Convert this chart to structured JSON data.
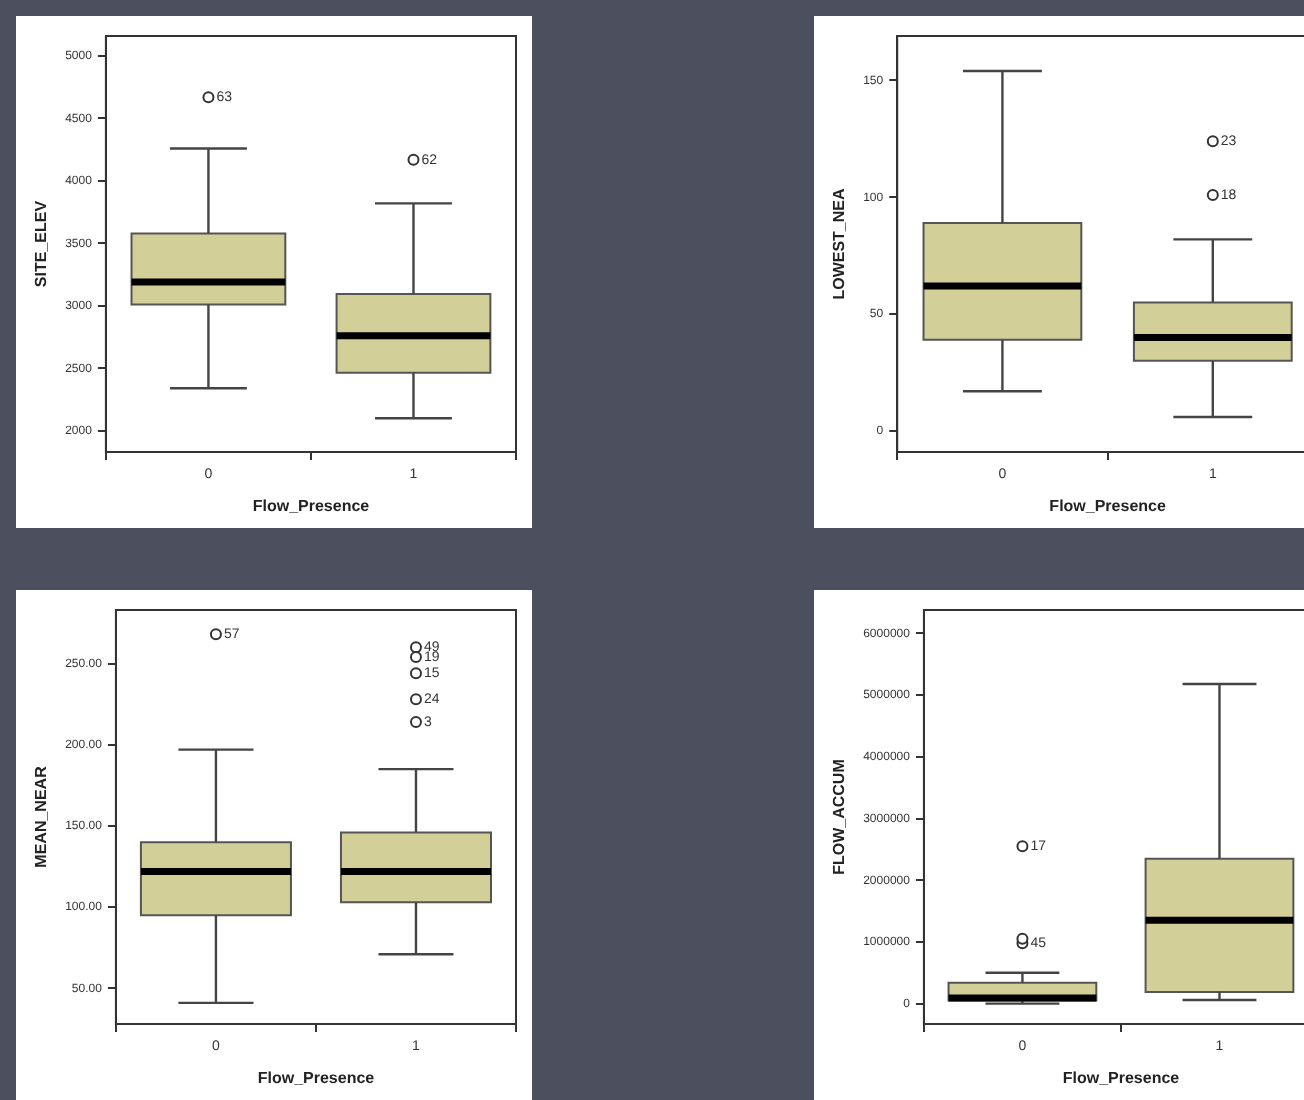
{
  "chart_data": [
    {
      "type": "box",
      "categories": [
        "0",
        "1"
      ],
      "xlabel": "Flow_Presence",
      "ylabel": "SITE_ELEV",
      "ylim": [
        1830,
        5160
      ],
      "yticks": [
        2000,
        2500,
        3000,
        3500,
        4000,
        4500,
        5000
      ],
      "grid": false,
      "legend": false,
      "series": [
        {
          "color": "#d3cf98",
          "boxes": [
            {
              "low": 2340,
              "q1": 3010,
              "median": 3190,
              "q3": 3580,
              "high": 4260,
              "outliers": [
                4670
              ]
            },
            {
              "low": 2100,
              "q1": 2465,
              "median": 2760,
              "q3": 3095,
              "high": 3820,
              "outliers": [
                4170
              ]
            }
          ]
        }
      ],
      "annotations": [
        "63",
        "62"
      ]
    },
    {
      "type": "box",
      "categories": [
        "0",
        "1"
      ],
      "xlabel": "Flow_Presence",
      "ylabel": "LOWEST_NEA",
      "ylim": [
        -9,
        169
      ],
      "yticks": [
        0,
        50,
        100,
        150
      ],
      "grid": false,
      "legend": false,
      "series": [
        {
          "color": "#d3cf98",
          "boxes": [
            {
              "low": 17,
              "q1": 39,
              "median": 62,
              "q3": 89,
              "high": 154
            },
            {
              "low": 6,
              "q1": 30,
              "median": 40,
              "q3": 55,
              "high": 82,
              "outliers": [
                124,
                101
              ]
            }
          ]
        }
      ],
      "annotations": [
        "23",
        "18"
      ]
    },
    {
      "type": "box",
      "categories": [
        "0",
        "1"
      ],
      "xlabel": "Flow_Presence",
      "ylabel": "MEAN_NEAR",
      "ylim": [
        28,
        283
      ],
      "yticks": [
        {
          "value": 50,
          "label": "50.00"
        },
        {
          "value": 100,
          "label": "100.00"
        },
        {
          "value": 150,
          "label": "150.00"
        },
        {
          "value": 200,
          "label": "200.00"
        },
        {
          "value": 250,
          "label": "250.00"
        }
      ],
      "grid": false,
      "legend": false,
      "series": [
        {
          "color": "#d3cf98",
          "boxes": [
            {
              "low": 41,
              "q1": 95,
              "median": 122,
              "q3": 140,
              "high": 197,
              "outliers": [
                268
              ]
            },
            {
              "low": 71,
              "q1": 103,
              "median": 122,
              "q3": 146,
              "high": 185,
              "outliers": [
                260,
                254,
                244,
                228,
                214
              ]
            }
          ]
        }
      ],
      "annotations": [
        "57",
        "49",
        "19",
        "15",
        "24",
        "3"
      ]
    },
    {
      "type": "box",
      "categories": [
        "0",
        "1"
      ],
      "xlabel": "Flow_Presence",
      "ylabel": "FLOW_ACCUM",
      "ylim": [
        -330000,
        6380000
      ],
      "yticks": [
        0,
        1000000,
        2000000,
        3000000,
        4000000,
        5000000,
        6000000
      ],
      "grid": false,
      "legend": false,
      "series": [
        {
          "color": "#d3cf98",
          "boxes": [
            {
              "low": 0,
              "q1": 50000,
              "median": 90000,
              "q3": 340000,
              "high": 500000,
              "outliers": [
                2550000,
                980000,
                1050000
              ]
            },
            {
              "low": 60000,
              "q1": 190000,
              "median": 1350000,
              "q3": 2350000,
              "high": 5180000
            }
          ]
        }
      ],
      "annotations": [
        "17",
        "45"
      ]
    }
  ]
}
